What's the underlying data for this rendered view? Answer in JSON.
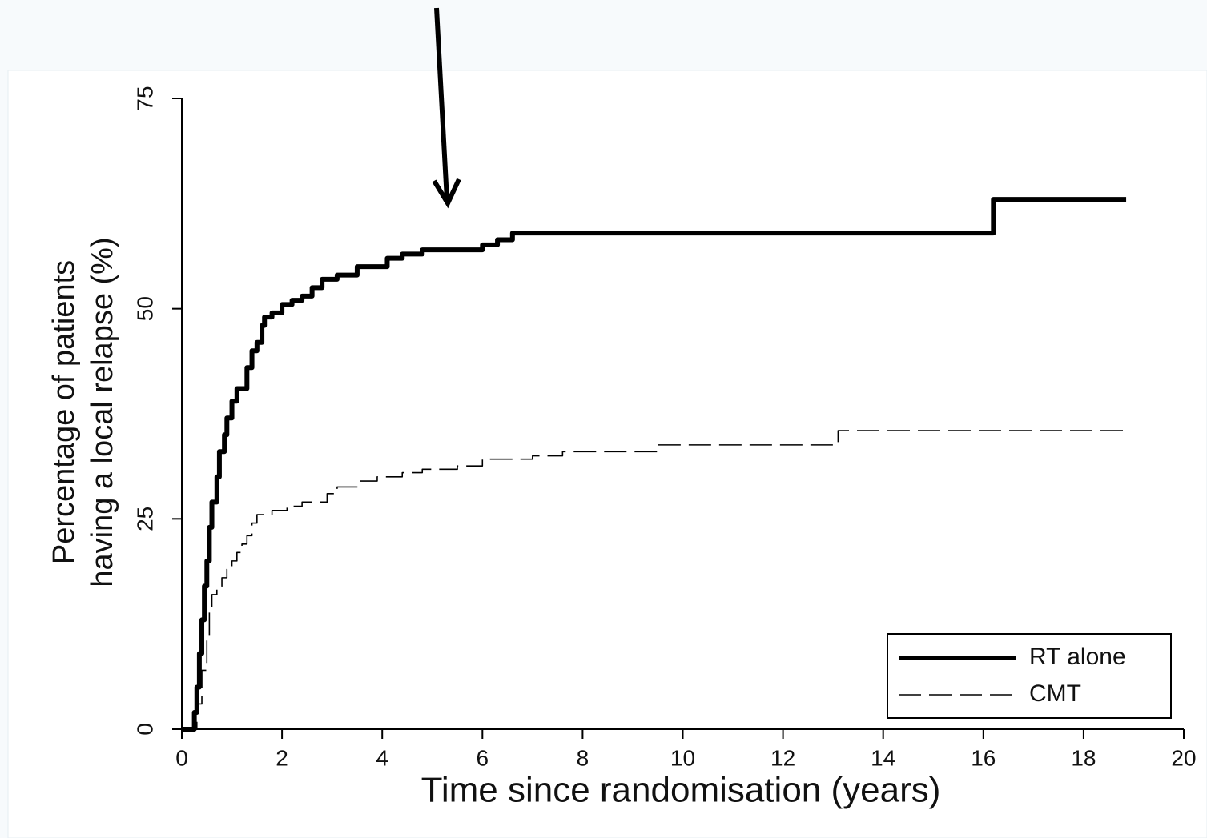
{
  "chart_data": {
    "type": "step",
    "x_label": "Time since randomisation (years)",
    "y_label": [
      "Percentage of patients",
      "having a local relapse (%)"
    ],
    "xlim": [
      0,
      20
    ],
    "xticks": [
      0,
      2,
      4,
      6,
      8,
      10,
      12,
      14,
      16,
      18,
      20
    ],
    "ylim": [
      0,
      75
    ],
    "yticks": [
      0,
      25,
      50,
      75
    ],
    "legend": "lower right",
    "series": [
      {
        "name": "RT alone",
        "color": "#000000",
        "line_width": 6,
        "dashed": false,
        "x": [
          0,
          0.2,
          0.25,
          0.3,
          0.35,
          0.4,
          0.45,
          0.5,
          0.55,
          0.6,
          0.7,
          0.75,
          0.85,
          0.9,
          1.0,
          1.1,
          1.3,
          1.4,
          1.5,
          1.6,
          1.65,
          1.8,
          2.0,
          2.2,
          2.4,
          2.6,
          2.8,
          3.1,
          3.5,
          4.1,
          4.4,
          4.8,
          6.0,
          6.3,
          6.6,
          16.2,
          18.85
        ],
        "values": [
          0,
          0,
          2,
          5,
          9,
          13,
          17,
          20,
          24,
          27,
          30,
          33,
          35,
          37,
          39,
          40.5,
          43,
          45,
          46,
          48,
          49,
          49.5,
          50.5,
          51,
          51.5,
          52.5,
          53.5,
          54,
          55,
          56,
          56.5,
          57,
          57.6,
          58.2,
          59,
          63,
          63
        ]
      },
      {
        "name": "CMT",
        "color": "#000000",
        "line_width": 1.6,
        "dashed": true,
        "x": [
          0,
          0.2,
          0.3,
          0.4,
          0.5,
          0.55,
          0.6,
          0.7,
          0.8,
          0.9,
          1.0,
          1.1,
          1.2,
          1.3,
          1.4,
          1.5,
          1.8,
          2.1,
          2.4,
          2.9,
          3.1,
          3.5,
          3.9,
          4.4,
          4.8,
          5.5,
          6.0,
          7.0,
          7.6,
          9.5,
          13.1,
          18.8
        ],
        "values": [
          0,
          0,
          3,
          7,
          11,
          14,
          16,
          17,
          18,
          19,
          20,
          21,
          22,
          23,
          24.5,
          25.5,
          26,
          26.5,
          27,
          28,
          28.8,
          29.5,
          30,
          30.5,
          30.9,
          31.3,
          32.1,
          32.5,
          33,
          33.8,
          35.5,
          35.5
        ]
      }
    ]
  }
}
